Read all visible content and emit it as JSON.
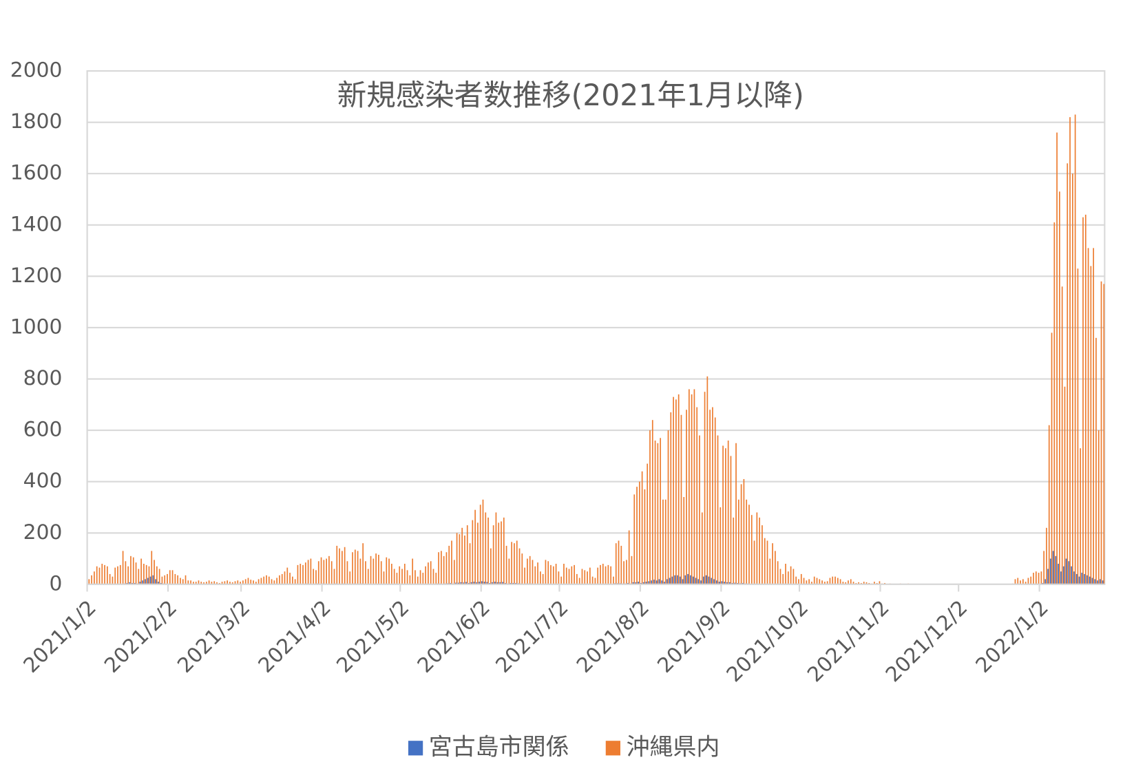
{
  "chart_data": {
    "type": "bar",
    "title": "新規感染者数推移(2021年1月以降)",
    "categories": [
      "2021/1/2",
      null,
      null,
      null,
      null,
      null,
      null,
      null,
      null,
      null,
      null,
      null,
      null,
      null,
      null,
      null,
      null,
      null,
      null,
      null,
      null,
      null,
      null,
      null,
      null,
      null,
      null,
      null,
      null,
      null,
      null,
      "2021/2/2",
      null,
      null,
      null,
      null,
      null,
      null,
      null,
      null,
      null,
      null,
      null,
      null,
      null,
      null,
      null,
      null,
      null,
      null,
      null,
      null,
      null,
      null,
      null,
      null,
      null,
      null,
      null,
      "2021/3/2",
      null,
      null,
      null,
      null,
      null,
      null,
      null,
      null,
      null,
      null,
      null,
      null,
      null,
      null,
      null,
      null,
      null,
      null,
      null,
      null,
      null,
      null,
      null,
      null,
      null,
      null,
      null,
      null,
      null,
      null,
      "2021/4/2",
      null,
      null,
      null,
      null,
      null,
      null,
      null,
      null,
      null,
      null,
      null,
      null,
      null,
      null,
      null,
      null,
      null,
      null,
      null,
      null,
      null,
      null,
      null,
      null,
      null,
      null,
      null,
      null,
      null,
      "2021/5/2",
      null,
      null,
      null,
      null,
      null,
      null,
      null,
      null,
      null,
      null,
      null,
      null,
      null,
      null,
      null,
      null,
      null,
      null,
      null,
      null,
      null,
      null,
      null,
      null,
      null,
      null,
      null,
      null,
      null,
      null,
      "2021/6/2",
      null,
      null,
      null,
      null,
      null,
      null,
      null,
      null,
      null,
      null,
      null,
      null,
      null,
      null,
      null,
      null,
      null,
      null,
      null,
      null,
      null,
      null,
      null,
      null,
      null,
      null,
      null,
      null,
      null,
      "2021/7/2",
      null,
      null,
      null,
      null,
      null,
      null,
      null,
      null,
      null,
      null,
      null,
      null,
      null,
      null,
      null,
      null,
      null,
      null,
      null,
      null,
      null,
      null,
      null,
      null,
      null,
      null,
      null,
      null,
      null,
      null,
      "2021/8/2",
      null,
      null,
      null,
      null,
      null,
      null,
      null,
      null,
      null,
      null,
      null,
      null,
      null,
      null,
      null,
      null,
      null,
      null,
      null,
      null,
      null,
      null,
      null,
      null,
      null,
      null,
      null,
      null,
      null,
      null,
      "2021/9/2",
      null,
      null,
      null,
      null,
      null,
      null,
      null,
      null,
      null,
      null,
      null,
      null,
      null,
      null,
      null,
      null,
      null,
      null,
      null,
      null,
      null,
      null,
      null,
      null,
      null,
      null,
      null,
      null,
      null,
      "2021/10/2",
      null,
      null,
      null,
      null,
      null,
      null,
      null,
      null,
      null,
      null,
      null,
      null,
      null,
      null,
      null,
      null,
      null,
      null,
      null,
      null,
      null,
      null,
      null,
      null,
      null,
      null,
      null,
      null,
      null,
      null,
      "2021/11/2",
      null,
      null,
      null,
      null,
      null,
      null,
      null,
      null,
      null,
      null,
      null,
      null,
      null,
      null,
      null,
      null,
      null,
      null,
      null,
      null,
      null,
      null,
      null,
      null,
      null,
      null,
      null,
      null,
      null,
      "2021/12/2",
      null,
      null,
      null,
      null,
      null,
      null,
      null,
      null,
      null,
      null,
      null,
      null,
      null,
      null,
      null,
      null,
      null,
      null,
      null,
      null,
      null,
      null,
      null,
      null,
      null,
      null,
      null,
      null,
      null,
      null,
      "2022/1/2",
      null,
      null,
      null,
      null,
      null,
      null,
      null,
      null,
      null,
      null,
      null,
      null,
      null,
      null,
      null,
      null,
      null,
      null,
      null,
      null,
      null,
      null,
      null,
      null
    ],
    "series": [
      {
        "name": "宮古島市関係",
        "color": "#4472c4",
        "values": [
          0,
          0,
          0,
          0,
          0,
          0,
          0,
          0,
          0,
          0,
          0,
          0,
          0,
          2,
          3,
          5,
          8,
          5,
          5,
          3,
          10,
          15,
          20,
          25,
          30,
          35,
          20,
          10,
          5,
          3,
          2,
          2,
          1,
          1,
          0,
          0,
          0,
          0,
          0,
          0,
          0,
          0,
          0,
          0,
          0,
          0,
          0,
          0,
          0,
          0,
          0,
          0,
          0,
          0,
          0,
          0,
          0,
          0,
          0,
          0,
          0,
          0,
          0,
          0,
          0,
          0,
          0,
          0,
          0,
          0,
          0,
          0,
          0,
          0,
          0,
          0,
          0,
          0,
          0,
          0,
          1,
          1,
          2,
          2,
          3,
          2,
          1,
          2,
          3,
          2,
          3,
          2,
          2,
          1,
          1,
          3,
          2,
          2,
          3,
          1,
          1,
          2,
          3,
          2,
          1,
          3,
          2,
          1,
          2,
          2,
          2,
          2,
          1,
          1,
          2,
          2,
          1,
          1,
          0,
          1,
          1,
          1,
          1,
          0,
          2,
          1,
          0,
          1,
          1,
          1,
          2,
          2,
          1,
          1,
          3,
          3,
          2,
          3,
          4,
          5,
          3,
          6,
          6,
          8,
          7,
          9,
          5,
          8,
          10,
          8,
          10,
          12,
          10,
          9,
          5,
          8,
          10,
          8,
          8,
          9,
          5,
          3,
          5,
          5,
          5,
          4,
          3,
          2,
          3,
          3,
          3,
          2,
          2,
          1,
          1,
          2,
          2,
          1,
          1,
          2,
          1,
          1,
          2,
          1,
          1,
          1,
          2,
          1,
          1,
          1,
          1,
          1,
          1,
          1,
          1,
          1,
          2,
          2,
          2,
          2,
          2,
          1,
          4,
          4,
          4,
          3,
          3,
          5,
          3,
          8,
          8,
          10,
          5,
          8,
          10,
          12,
          15,
          18,
          15,
          20,
          15,
          10,
          20,
          25,
          30,
          35,
          35,
          30,
          20,
          35,
          40,
          35,
          30,
          25,
          20,
          15,
          30,
          35,
          30,
          25,
          20,
          15,
          10,
          12,
          10,
          8,
          8,
          5,
          6,
          5,
          4,
          5,
          3,
          3,
          2,
          2,
          2,
          1,
          1,
          1,
          1,
          0,
          1,
          0,
          0,
          0,
          0,
          0,
          0,
          0,
          0,
          0,
          0,
          0,
          0,
          0,
          0,
          0,
          0,
          0,
          0,
          0,
          0,
          0,
          0,
          0,
          0,
          0,
          0,
          0,
          0,
          0,
          0,
          0,
          0,
          0,
          0,
          0,
          0,
          0,
          0,
          0,
          0,
          0,
          0,
          0,
          0,
          0,
          0,
          0,
          0,
          0,
          0,
          0,
          0,
          0,
          0,
          0,
          0,
          0,
          0,
          0,
          0,
          0,
          0,
          0,
          0,
          0,
          0,
          0,
          0,
          0,
          0,
          0,
          0,
          0,
          0,
          0,
          0,
          0,
          0,
          0,
          0,
          0,
          0,
          0,
          0,
          0,
          0,
          0,
          0,
          0,
          0,
          0,
          0,
          0,
          0,
          0,
          0,
          0,
          0,
          1,
          1,
          2,
          2,
          0,
          5,
          20,
          60,
          100,
          130,
          110,
          80,
          50,
          70,
          100,
          90,
          70,
          50,
          40,
          30,
          45,
          40,
          35,
          30,
          25,
          20,
          15,
          20,
          15
        ]
      },
      {
        "name": "沖縄県内",
        "color": "#ed7d31",
        "values": [
          20,
          35,
          50,
          70,
          65,
          80,
          75,
          70,
          40,
          30,
          65,
          70,
          75,
          130,
          90,
          70,
          110,
          105,
          85,
          60,
          100,
          80,
          75,
          70,
          130,
          95,
          70,
          60,
          30,
          35,
          40,
          55,
          55,
          40,
          35,
          25,
          20,
          35,
          15,
          15,
          10,
          10,
          15,
          10,
          8,
          10,
          15,
          10,
          12,
          8,
          5,
          10,
          12,
          15,
          10,
          8,
          12,
          15,
          10,
          15,
          20,
          25,
          18,
          15,
          10,
          20,
          25,
          30,
          35,
          30,
          20,
          15,
          25,
          35,
          40,
          50,
          65,
          45,
          30,
          20,
          75,
          80,
          75,
          85,
          95,
          100,
          60,
          55,
          90,
          105,
          95,
          100,
          110,
          90,
          60,
          150,
          140,
          130,
          145,
          90,
          50,
          125,
          135,
          130,
          100,
          160,
          90,
          60,
          110,
          100,
          120,
          115,
          90,
          50,
          105,
          100,
          80,
          60,
          45,
          70,
          60,
          80,
          55,
          35,
          100,
          55,
          30,
          55,
          45,
          70,
          85,
          90,
          60,
          45,
          125,
          130,
          110,
          125,
          150,
          170,
          95,
          200,
          195,
          220,
          190,
          230,
          160,
          250,
          290,
          240,
          310,
          330,
          280,
          260,
          140,
          230,
          280,
          240,
          245,
          260,
          150,
          100,
          165,
          160,
          170,
          140,
          120,
          65,
          100,
          110,
          95,
          70,
          85,
          50,
          40,
          95,
          90,
          75,
          70,
          80,
          50,
          30,
          80,
          65,
          60,
          70,
          75,
          40,
          25,
          60,
          55,
          50,
          65,
          30,
          25,
          65,
          75,
          80,
          70,
          75,
          70,
          30,
          160,
          170,
          150,
          90,
          95,
          210,
          110,
          350,
          380,
          400,
          440,
          370,
          470,
          600,
          640,
          560,
          550,
          570,
          330,
          330,
          600,
          670,
          730,
          720,
          740,
          660,
          340,
          680,
          760,
          740,
          760,
          690,
          580,
          280,
          750,
          810,
          680,
          690,
          650,
          580,
          300,
          540,
          530,
          560,
          500,
          260,
          550,
          330,
          390,
          410,
          330,
          310,
          270,
          170,
          280,
          260,
          230,
          180,
          170,
          100,
          160,
          130,
          90,
          60,
          40,
          80,
          50,
          70,
          60,
          30,
          20,
          40,
          25,
          15,
          20,
          10,
          30,
          25,
          20,
          15,
          10,
          12,
          25,
          30,
          30,
          25,
          20,
          10,
          8,
          15,
          20,
          10,
          5,
          8,
          5,
          10,
          8,
          5,
          3,
          10,
          5,
          12,
          3,
          5,
          2,
          3,
          2,
          1,
          2,
          3,
          1,
          2,
          3,
          1,
          0,
          2,
          1,
          1,
          0,
          1,
          2,
          1,
          0,
          1,
          0,
          1,
          0,
          0,
          1,
          0,
          0,
          1,
          0,
          1,
          0,
          0,
          0,
          0,
          1,
          0,
          0,
          0,
          0,
          0,
          1,
          0,
          0,
          0,
          0,
          1,
          0,
          2,
          3,
          20,
          25,
          15,
          20,
          10,
          25,
          30,
          45,
          50,
          45,
          50,
          130,
          220,
          620,
          980,
          1410,
          1760,
          1530,
          1160,
          770,
          1640,
          1820,
          1600,
          1830,
          1230,
          530,
          1430,
          1440,
          1310,
          1240,
          1310,
          960,
          600,
          1180,
          1170
        ]
      }
    ],
    "ylim": [
      0,
      2000
    ],
    "yticks": [
      0,
      200,
      400,
      600,
      800,
      1000,
      1200,
      1400,
      1600,
      1800,
      2000
    ],
    "grid": true,
    "legend": "bottom"
  }
}
